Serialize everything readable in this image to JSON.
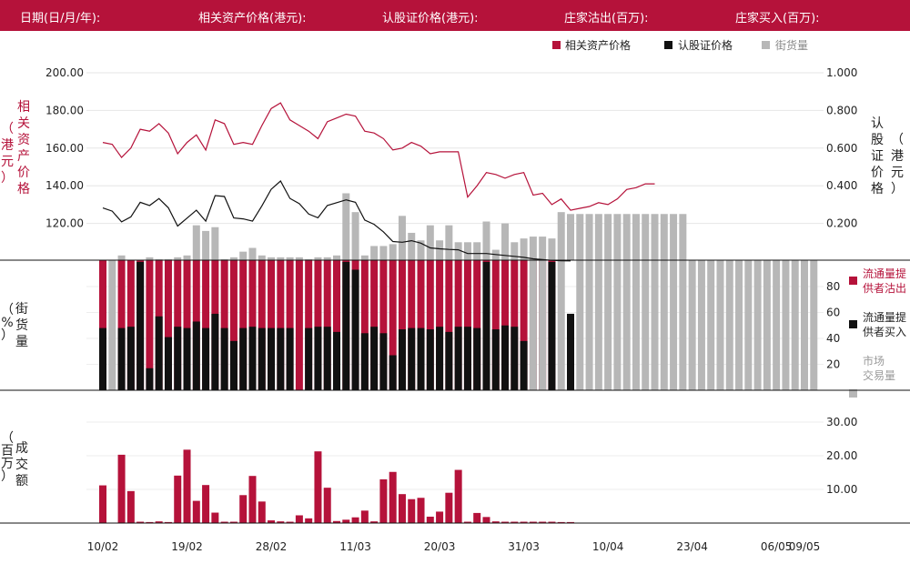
{
  "header": {
    "date_label": "日期(日/月/年):",
    "underlying_label": "相关资产价格(港元):",
    "warrant_label": "认股证价格(港元):",
    "mm_sell_label": "庄家沽出(百万):",
    "mm_buy_label": "庄家买入(百万):"
  },
  "legend": {
    "underlying": "相关资产价格",
    "warrant": "认股证价格",
    "outstanding": "街货量"
  },
  "legend2": {
    "sell_line1": "流通量提",
    "sell_line2": "供者沽出",
    "buy_line1": "流通量提",
    "buy_line2": "供者买入",
    "market_line1": "市场",
    "market_line2": "交易量"
  },
  "axes": {
    "left_label": "相关资产价格（港元）",
    "right_label": "认股证价格（港元）",
    "mid_label": "街货量（%）",
    "bottom_label": "成交额（百万）",
    "left_ticks": [
      "200.00",
      "180.00",
      "160.00",
      "140.00",
      "120.00"
    ],
    "right_ticks": [
      "1.000",
      "0.800",
      "0.600",
      "0.400",
      "0.200"
    ],
    "mid_ticks": [
      "80",
      "60",
      "40",
      "20"
    ],
    "bottom_ticks": [
      "30.00",
      "20.00",
      "10.00"
    ],
    "x_ticks": [
      {
        "i": 0,
        "label": "10/02"
      },
      {
        "i": 9,
        "label": "19/02"
      },
      {
        "i": 18,
        "label": "28/02"
      },
      {
        "i": 27,
        "label": "11/03"
      },
      {
        "i": 36,
        "label": "20/03"
      },
      {
        "i": 45,
        "label": "31/03"
      },
      {
        "i": 54,
        "label": "10/04"
      },
      {
        "i": 63,
        "label": "23/04"
      },
      {
        "i": 72,
        "label": "06/05"
      },
      {
        "i": 75,
        "label": "09/05"
      }
    ]
  },
  "colors": {
    "red": "#b5123a",
    "black": "#111111",
    "grey": "#b7b7b7"
  },
  "chart_data": {
    "type": "bar",
    "x_count": 76,
    "underlying_price": [
      163,
      162,
      155,
      160,
      170,
      169,
      173,
      168,
      157,
      163,
      167,
      159,
      175,
      173,
      162,
      163,
      162,
      172,
      181,
      184,
      175,
      172,
      169,
      165,
      174,
      176,
      178,
      177,
      169,
      168,
      165,
      159,
      160,
      163,
      161,
      157,
      158,
      158,
      158,
      134,
      140,
      147,
      146,
      144,
      146,
      147,
      135,
      136,
      130,
      133,
      127,
      128,
      129,
      131,
      130,
      133,
      138,
      139,
      141,
      141
    ],
    "underlying_price_x": [
      0,
      1,
      2,
      3,
      4,
      5,
      6,
      7,
      8,
      9,
      10,
      11,
      12,
      13,
      14,
      15,
      16,
      17,
      18,
      19,
      20,
      21,
      22,
      23,
      24,
      25,
      26,
      27,
      28,
      29,
      30,
      31,
      32,
      33,
      34,
      35,
      36,
      37,
      38,
      39,
      40,
      41,
      42,
      43,
      44,
      45,
      46,
      47,
      48,
      49,
      50,
      51,
      52,
      53,
      54,
      55,
      56,
      57,
      58,
      59
    ],
    "warrant_price": [
      0.282,
      0.265,
      0.208,
      0.235,
      0.312,
      0.295,
      0.332,
      0.283,
      0.186,
      0.228,
      0.27,
      0.212,
      0.348,
      0.343,
      0.229,
      0.224,
      0.212,
      0.293,
      0.381,
      0.425,
      0.333,
      0.305,
      0.25,
      0.23,
      0.295,
      0.31,
      0.325,
      0.312,
      0.218,
      0.195,
      0.155,
      0.104,
      0.1,
      0.108,
      0.095,
      0.07,
      0.065,
      0.062,
      0.06,
      0.04,
      0.04,
      0.04,
      0.035,
      0.03,
      0.025,
      0.02,
      0.012,
      0.008,
      0.004,
      0.002,
      0.001
    ],
    "warrant_price_x": [
      0,
      1,
      2,
      3,
      4,
      5,
      6,
      7,
      8,
      9,
      10,
      11,
      12,
      13,
      14,
      15,
      16,
      17,
      18,
      19,
      20,
      21,
      22,
      23,
      24,
      25,
      26,
      27,
      28,
      29,
      30,
      31,
      32,
      33,
      34,
      35,
      36,
      37,
      38,
      39,
      40,
      41,
      42,
      43,
      44,
      45,
      46,
      47,
      48,
      49,
      50
    ],
    "outstanding_pct": [
      0,
      0,
      3,
      0,
      0,
      2,
      1,
      1,
      2,
      3,
      19,
      16,
      18,
      1,
      2,
      5,
      7,
      3,
      2,
      2,
      2,
      2,
      1,
      2,
      2,
      3,
      36,
      26,
      3,
      8,
      8,
      9,
      24,
      15,
      11,
      19,
      11,
      19,
      10,
      10,
      10,
      21,
      6,
      20,
      10,
      12,
      13,
      13,
      12,
      26,
      25,
      25,
      25,
      25,
      25,
      25,
      25,
      25,
      25,
      25,
      25,
      25,
      25
    ],
    "outstanding_pct_x": [
      0,
      1,
      2,
      3,
      4,
      5,
      6,
      7,
      8,
      9,
      10,
      11,
      12,
      13,
      14,
      15,
      16,
      17,
      18,
      19,
      20,
      21,
      22,
      23,
      24,
      25,
      26,
      27,
      28,
      29,
      30,
      31,
      32,
      33,
      34,
      35,
      36,
      37,
      38,
      39,
      40,
      41,
      42,
      43,
      44,
      45,
      46,
      47,
      48,
      49,
      50,
      51,
      52,
      53,
      54,
      55,
      56,
      57,
      58,
      59,
      60,
      61,
      62
    ],
    "lp_sell_pct": [
      100,
      0,
      100,
      100,
      100,
      100,
      100,
      100,
      100,
      100,
      100,
      100,
      100,
      100,
      100,
      100,
      100,
      100,
      100,
      100,
      100,
      100,
      100,
      100,
      100,
      100,
      100,
      100,
      100,
      100,
      100,
      100,
      100,
      100,
      100,
      100,
      100,
      100,
      100,
      100,
      100,
      100,
      100,
      100,
      100,
      100,
      100,
      100,
      100,
      0,
      0,
      0,
      0,
      0,
      0,
      0,
      0,
      0,
      0,
      0,
      0,
      0,
      0
    ],
    "lp_buy_pct": [
      48,
      0,
      48,
      49,
      99,
      17,
      57,
      41,
      49,
      48,
      53,
      48,
      59,
      48,
      38,
      48,
      49,
      48,
      48,
      48,
      48,
      0,
      48,
      49,
      49,
      45,
      99,
      93,
      44,
      49,
      44,
      27,
      47,
      48,
      48,
      47,
      49,
      45,
      49,
      49,
      48,
      99,
      47,
      50,
      49,
      38,
      0,
      0,
      99,
      0,
      59,
      0,
      0,
      0,
      0,
      0,
      0,
      0,
      0,
      0,
      0,
      0,
      0
    ],
    "market_pct": [
      0,
      100,
      0,
      0,
      0,
      0,
      0,
      0,
      0,
      0,
      0,
      0,
      0,
      0,
      0,
      0,
      0,
      0,
      0,
      0,
      0,
      0,
      0,
      0,
      0,
      0,
      0,
      0,
      0,
      0,
      0,
      0,
      0,
      0,
      0,
      0,
      0,
      0,
      0,
      0,
      0,
      0,
      0,
      0,
      0,
      0,
      100,
      100,
      0,
      100,
      0,
      100,
      100,
      100,
      100,
      100,
      100,
      100,
      100,
      100,
      100,
      100,
      100,
      100,
      100,
      100,
      100,
      100,
      100,
      100,
      100,
      100,
      100,
      100,
      100,
      100,
      100
    ],
    "turnover_mn": [
      11.2,
      0,
      20.3,
      9.5,
      0.4,
      0.3,
      0.5,
      0.3,
      14.1,
      21.8,
      6.6,
      11.3,
      3.1,
      0.4,
      0.4,
      8.3,
      14.0,
      6.4,
      0.8,
      0.5,
      0.4,
      2.3,
      1.4,
      21.3,
      10.5,
      0.6,
      1.0,
      1.7,
      3.7,
      0.5,
      13.0,
      15.2,
      8.6,
      7.1,
      7.5,
      1.9,
      3.4,
      9.0,
      15.8,
      0.4,
      3.0,
      1.8,
      0.5,
      0.4,
      0.4,
      0.4,
      0.4,
      0.4,
      0.4,
      0.3,
      0.3
    ],
    "ylim_left": [
      100,
      200
    ],
    "ylim_right": [
      0,
      1
    ],
    "ylim_mid": [
      0,
      100
    ],
    "ylim_bottom": [
      0,
      30
    ]
  }
}
